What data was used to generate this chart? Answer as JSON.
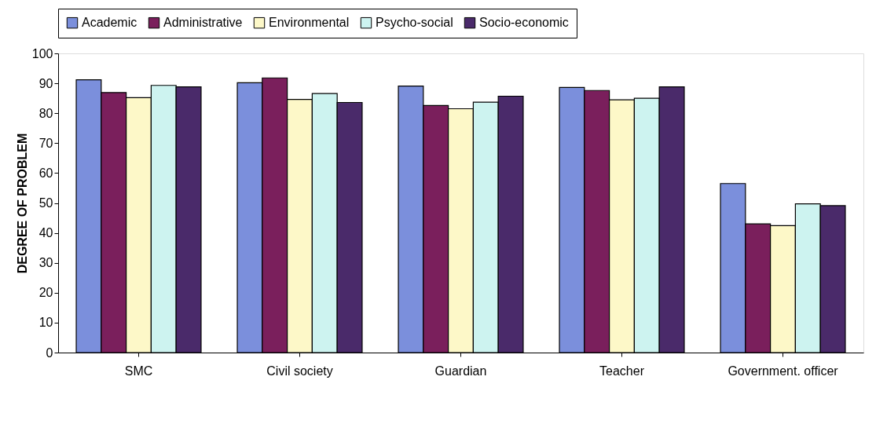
{
  "chart_data": {
    "type": "bar",
    "ylabel": "DEGREE OF PROBLEM",
    "categories": [
      "SMC",
      "Civil society",
      "Guardian",
      "Teacher",
      "Government. officer"
    ],
    "series": [
      {
        "name": "Academic",
        "color": "#7b8fdc",
        "values": [
          91.2,
          90.2,
          89.1,
          88.6,
          56.5
        ]
      },
      {
        "name": "Administrative",
        "color": "#7a1f5c",
        "values": [
          86.9,
          91.8,
          82.6,
          87.6,
          43
        ]
      },
      {
        "name": "Environmental",
        "color": "#fdf8c8",
        "values": [
          85.2,
          84.6,
          81.5,
          84.5,
          42.4
        ]
      },
      {
        "name": "Psycho-social",
        "color": "#cdf3f0",
        "values": [
          89.3,
          86.6,
          83.7,
          85,
          49.7
        ]
      },
      {
        "name": "Socio-economic",
        "color": "#4a2a6a",
        "values": [
          88.8,
          83.6,
          85.7,
          88.8,
          49.1
        ]
      }
    ],
    "ylim": [
      0,
      100
    ],
    "yticks": [
      0,
      10,
      20,
      30,
      40,
      50,
      60,
      70,
      80,
      90,
      100
    ],
    "grid": false,
    "legend": "top"
  }
}
